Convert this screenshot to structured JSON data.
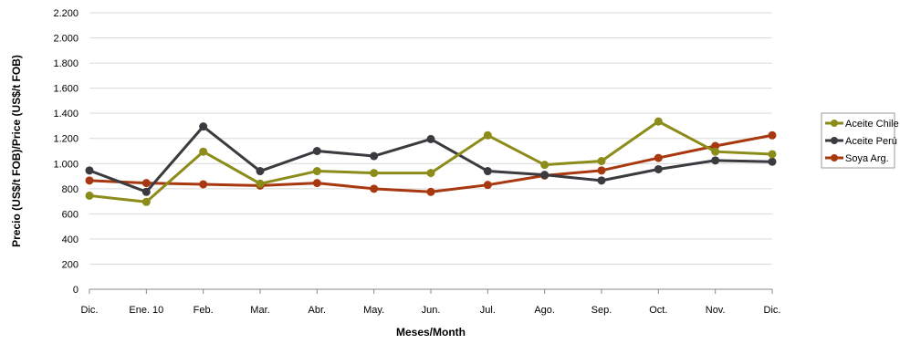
{
  "chart_data": {
    "type": "line",
    "title": "",
    "xlabel": "Meses/Month",
    "ylabel": "Precio (US$/t FOB)/Price (US$/t FOB)",
    "ylim": [
      0,
      2200
    ],
    "ytick_values": [
      0,
      200,
      400,
      600,
      800,
      1000,
      1200,
      1400,
      1600,
      1800,
      2000,
      2200
    ],
    "ytick_labels": [
      "0",
      "200",
      "400",
      "600",
      "800",
      "1.000",
      "1.200",
      "1.400",
      "1.600",
      "1.800",
      "2.000",
      "2.200"
    ],
    "categories": [
      "Dic.",
      "Ene. 10",
      "Feb.",
      "Mar.",
      "Abr.",
      "May.",
      "Jun.",
      "Jul.",
      "Ago.",
      "Sep.",
      "Oct.",
      "Nov.",
      "Dic."
    ],
    "grid": "horizontal",
    "legend_position": "right",
    "series": [
      {
        "name": "Aceite Chile",
        "color": "#8c8c1a",
        "values": [
          745,
          695,
          1095,
          840,
          940,
          925,
          925,
          1225,
          990,
          1020,
          1335,
          1095,
          1075
        ]
      },
      {
        "name": "Aceite Perú",
        "color": "#3a3a3f",
        "values": [
          945,
          775,
          1295,
          940,
          1100,
          1060,
          1195,
          940,
          910,
          865,
          955,
          1025,
          1015
        ]
      },
      {
        "name": "Soya Arg.",
        "color": "#a8380f",
        "values": [
          865,
          845,
          835,
          825,
          845,
          800,
          775,
          830,
          905,
          945,
          1045,
          1140,
          1225
        ]
      }
    ]
  }
}
